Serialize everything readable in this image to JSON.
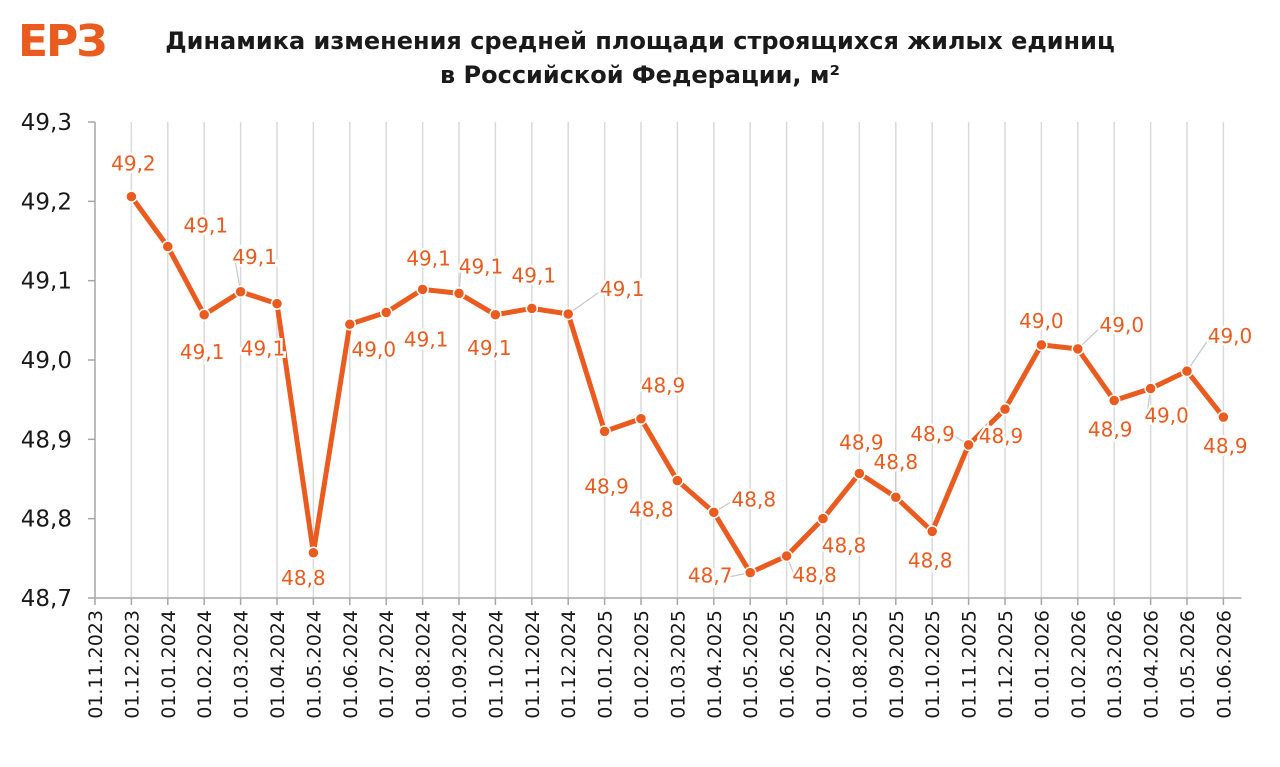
{
  "logo": {
    "text": "ЕРЗ",
    "color": "#ea5b1f"
  },
  "header": {
    "title_line1": "Динамика изменения средней площади строящихся жилых единиц",
    "title_line2": "в Российской Федерации, м²"
  },
  "colors": {
    "series": "#ea5b1f",
    "grid": "#d9d9d9",
    "axis": "#a6a6a6",
    "text": "#1a1a1a"
  },
  "chart_data": {
    "type": "line",
    "title": "Динамика изменения средней площади строящихся жилых единиц в Российской Федерации, м²",
    "xlabel": "",
    "ylabel": "",
    "ylim": [
      48.7,
      49.3
    ],
    "yticks": [
      "48,7",
      "48,8",
      "48,9",
      "49,0",
      "49,1",
      "49,2",
      "49,3"
    ],
    "grid": "vertical",
    "legend": "none",
    "categories": [
      "01.11.2023",
      "01.12.2023",
      "01.01.2024",
      "01.02.2024",
      "01.03.2024",
      "01.04.2024",
      "01.05.2024",
      "01.06.2024",
      "01.07.2024",
      "01.08.2024",
      "01.09.2024",
      "01.10.2024",
      "01.11.2024",
      "01.12.2024",
      "01.01.2025",
      "01.02.2025",
      "01.03.2025",
      "01.04.2025",
      "01.05.2025",
      "01.06.2025",
      "01.07.2025",
      "01.08.2025",
      "01.09.2025",
      "01.10.2025",
      "01.11.2025",
      "01.12.2025",
      "01.01.2026",
      "01.02.2026",
      "01.03.2026",
      "01.04.2026",
      "01.05.2026",
      "01.06.2026"
    ],
    "series": [
      {
        "values": [
          null,
          49.206,
          49.143,
          49.057,
          49.086,
          49.071,
          48.757,
          49.045,
          49.06,
          49.089,
          49.084,
          49.057,
          49.065,
          49.058,
          48.91,
          48.926,
          48.848,
          48.808,
          48.732,
          48.753,
          48.8,
          48.857,
          48.827,
          48.784,
          48.893,
          48.938,
          49.019,
          49.014,
          48.949,
          48.964,
          48.986,
          48.928
        ],
        "labels": [
          "",
          "49,2",
          "49,1",
          "49,1",
          "49,1",
          "49,1",
          "48,8",
          "49,0",
          "49,1",
          "49,1",
          "49,1",
          "49,1",
          "49,1",
          "49,1",
          "48,9",
          "48,9",
          "48,8",
          "48,8",
          "48,7",
          "48,8",
          "48,8",
          "48,9",
          "48,8",
          "48,8",
          "48,9",
          "48,9",
          "49,0",
          "49,0",
          "48,9",
          "49,0",
          "49,0",
          "48,9"
        ]
      }
    ]
  }
}
